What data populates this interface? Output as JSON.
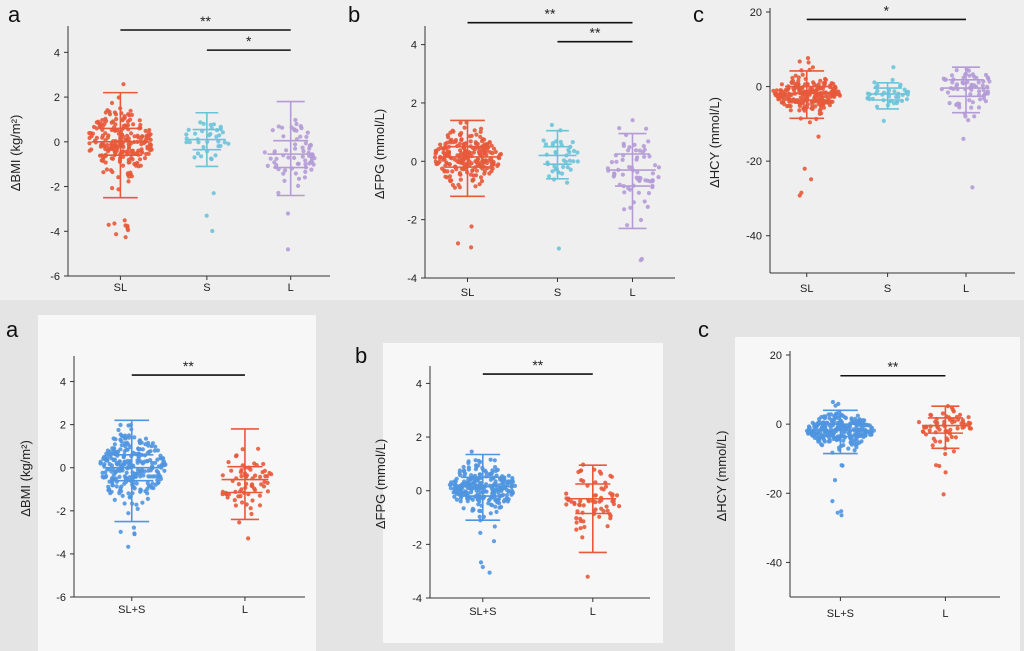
{
  "colors": {
    "orange": "#e8593a",
    "cyan": "#6cc3d9",
    "lavender": "#b49bd6",
    "blue": "#4f95e0"
  },
  "figure": {
    "top_row": [
      {
        "letter": "a",
        "ylabel": "ΔBMI (kg/m²)",
        "ylim": [
          -6,
          5
        ],
        "yticks": [
          -6,
          -4,
          -2,
          0,
          2,
          4
        ],
        "tick_labels": [
          "-6",
          "-4",
          "-2",
          "0",
          "2",
          "4"
        ],
        "groups": [
          {
            "name": "SL",
            "color": "orange",
            "mean": 0.0,
            "sd": 0.6,
            "min": -2.5,
            "max": 2.2,
            "n": 230,
            "spread": 1.0
          },
          {
            "name": "S",
            "color": "cyan",
            "mean": 0.1,
            "sd": 0.45,
            "min": -1.1,
            "max": 1.3,
            "n": 40,
            "spread": 0.55
          },
          {
            "name": "L",
            "color": "lavender",
            "mean": -0.55,
            "sd": 0.6,
            "min": -2.4,
            "max": 1.8,
            "n": 70,
            "spread": 0.75
          }
        ],
        "brackets": [
          {
            "from": 0,
            "to": 2,
            "label": "**",
            "y": 5.0
          },
          {
            "from": 1,
            "to": 2,
            "label": "*",
            "y": 4.1
          }
        ]
      },
      {
        "letter": "b",
        "ylabel": "ΔFPG (mmol/L)",
        "ylim": [
          -4,
          4.5
        ],
        "yticks": [
          -4,
          -2,
          0,
          2,
          4
        ],
        "tick_labels": [
          "-4",
          "-2",
          "0",
          "2",
          "4"
        ],
        "groups": [
          {
            "name": "SL",
            "color": "orange",
            "mean": 0.15,
            "sd": 0.35,
            "min": -1.2,
            "max": 1.4,
            "n": 230,
            "spread": 1.0
          },
          {
            "name": "S",
            "color": "cyan",
            "mean": 0.2,
            "sd": 0.3,
            "min": -0.6,
            "max": 1.05,
            "n": 40,
            "spread": 0.55
          },
          {
            "name": "L",
            "color": "lavender",
            "mean": -0.3,
            "sd": 0.55,
            "min": -2.3,
            "max": 0.95,
            "n": 70,
            "spread": 0.75
          }
        ],
        "brackets": [
          {
            "from": 0,
            "to": 2,
            "label": "**",
            "y": 4.75
          },
          {
            "from": 1,
            "to": 2,
            "label": "**",
            "y": 4.1
          }
        ]
      },
      {
        "letter": "c",
        "ylabel": "ΔHCY (mmol/L)",
        "ylim": [
          -50,
          20
        ],
        "yticks": [
          -40,
          -20,
          0,
          20
        ],
        "tick_labels": [
          "-40",
          "-20",
          "0",
          "20"
        ],
        "groups": [
          {
            "name": "SL",
            "color": "orange",
            "mean": -1.8,
            "sd": 1.8,
            "min": -8.5,
            "max": 4.2,
            "n": 230,
            "spread": 1.0
          },
          {
            "name": "S",
            "color": "cyan",
            "mean": -2.0,
            "sd": 1.6,
            "min": -6.0,
            "max": 1.0,
            "n": 40,
            "spread": 0.55
          },
          {
            "name": "L",
            "color": "lavender",
            "mean": -0.4,
            "sd": 2.2,
            "min": -7.0,
            "max": 5.2,
            "n": 70,
            "spread": 0.75
          }
        ],
        "brackets": [
          {
            "from": 0,
            "to": 2,
            "label": "*",
            "y": 18.0
          }
        ]
      }
    ],
    "bottom_row": [
      {
        "letter": "a",
        "ylabel": "ΔBMI (kg/m²)",
        "ylim": [
          -6,
          5
        ],
        "yticks": [
          -6,
          -4,
          -2,
          0,
          2,
          4
        ],
        "tick_labels": [
          "-6",
          "-4",
          "-2",
          "0",
          "2",
          "4"
        ],
        "groups": [
          {
            "name": "SL+S",
            "color": "blue",
            "mean": 0.0,
            "sd": 0.6,
            "min": -2.5,
            "max": 2.2,
            "n": 270,
            "spread": 1.0
          },
          {
            "name": "L",
            "color": "orange",
            "mean": -0.55,
            "sd": 0.6,
            "min": -2.4,
            "max": 1.8,
            "n": 70,
            "spread": 0.75
          }
        ],
        "brackets": [
          {
            "from": 0,
            "to": 1,
            "label": "**",
            "y": 4.3
          }
        ]
      },
      {
        "letter": "b",
        "ylabel": "ΔFPG (mmol/L)",
        "ylim": [
          -4,
          4.5
        ],
        "yticks": [
          -4,
          -2,
          0,
          2,
          4
        ],
        "tick_labels": [
          "-4",
          "-2",
          "0",
          "2",
          "4"
        ],
        "groups": [
          {
            "name": "SL+S",
            "color": "blue",
            "mean": 0.15,
            "sd": 0.35,
            "min": -1.1,
            "max": 1.35,
            "n": 270,
            "spread": 1.0
          },
          {
            "name": "L",
            "color": "orange",
            "mean": -0.3,
            "sd": 0.55,
            "min": -2.3,
            "max": 0.95,
            "n": 70,
            "spread": 0.75
          }
        ],
        "brackets": [
          {
            "from": 0,
            "to": 1,
            "label": "**",
            "y": 4.35
          }
        ]
      },
      {
        "letter": "c",
        "ylabel": "ΔHCY (mmol/L)",
        "ylim": [
          -50,
          20
        ],
        "yticks": [
          -40,
          -20,
          0,
          20
        ],
        "tick_labels": [
          "-40",
          "-20",
          "0",
          "20"
        ],
        "groups": [
          {
            "name": "SL+S",
            "color": "blue",
            "mean": -1.8,
            "sd": 1.8,
            "min": -8.5,
            "max": 4.0,
            "n": 270,
            "spread": 1.0
          },
          {
            "name": "L",
            "color": "orange",
            "mean": -0.4,
            "sd": 2.2,
            "min": -7.0,
            "max": 5.2,
            "n": 70,
            "spread": 0.75
          }
        ],
        "brackets": [
          {
            "from": 0,
            "to": 1,
            "label": "**",
            "y": 14.0
          }
        ]
      }
    ]
  },
  "chart_data": [
    {
      "type": "scatter",
      "panel": "a (top)",
      "ylabel": "ΔBMI (kg/m²)",
      "ylim": [
        -6,
        5
      ],
      "categories": [
        "SL",
        "S",
        "L"
      ],
      "series": [
        {
          "mean": [
            0.0,
            0.1,
            -0.55
          ],
          "sd_lower": [
            -2.5,
            -1.1,
            -2.4
          ],
          "sd_upper": [
            2.2,
            1.3,
            1.8
          ]
        }
      ],
      "annotations": [
        {
          "between": [
            "SL",
            "L"
          ],
          "label": "**"
        },
        {
          "between": [
            "S",
            "L"
          ],
          "label": "*"
        }
      ]
    },
    {
      "type": "scatter",
      "panel": "b (top)",
      "ylabel": "ΔFPG (mmol/L)",
      "ylim": [
        -4,
        4.5
      ],
      "categories": [
        "SL",
        "S",
        "L"
      ],
      "series": [
        {
          "mean": [
            0.15,
            0.2,
            -0.3
          ],
          "sd_lower": [
            -1.2,
            -0.6,
            -2.3
          ],
          "sd_upper": [
            1.4,
            1.05,
            0.95
          ]
        }
      ],
      "annotations": [
        {
          "between": [
            "SL",
            "L"
          ],
          "label": "**"
        },
        {
          "between": [
            "S",
            "L"
          ],
          "label": "**"
        }
      ]
    },
    {
      "type": "scatter",
      "panel": "c (top)",
      "ylabel": "ΔHCY (mmol/L)",
      "ylim": [
        -50,
        20
      ],
      "categories": [
        "SL",
        "S",
        "L"
      ],
      "series": [
        {
          "mean": [
            -1.8,
            -2.0,
            -0.4
          ],
          "sd_lower": [
            -8.5,
            -6.0,
            -7.0
          ],
          "sd_upper": [
            4.2,
            1.0,
            5.2
          ]
        }
      ],
      "annotations": [
        {
          "between": [
            "SL",
            "L"
          ],
          "label": "*"
        }
      ]
    },
    {
      "type": "scatter",
      "panel": "a (bottom)",
      "ylabel": "ΔBMI (kg/m²)",
      "ylim": [
        -6,
        5
      ],
      "categories": [
        "SL+S",
        "L"
      ],
      "series": [
        {
          "mean": [
            0.0,
            -0.55
          ],
          "sd_lower": [
            -2.5,
            -2.4
          ],
          "sd_upper": [
            2.2,
            1.8
          ]
        }
      ],
      "annotations": [
        {
          "between": [
            "SL+S",
            "L"
          ],
          "label": "**"
        }
      ]
    },
    {
      "type": "scatter",
      "panel": "b (bottom)",
      "ylabel": "ΔFPG (mmol/L)",
      "ylim": [
        -4,
        4.5
      ],
      "categories": [
        "SL+S",
        "L"
      ],
      "series": [
        {
          "mean": [
            0.15,
            -0.3
          ],
          "sd_lower": [
            -1.1,
            -2.3
          ],
          "sd_upper": [
            1.35,
            0.95
          ]
        }
      ],
      "annotations": [
        {
          "between": [
            "SL+S",
            "L"
          ],
          "label": "**"
        }
      ]
    },
    {
      "type": "scatter",
      "panel": "c (bottom)",
      "ylabel": "ΔHCY (mmol/L)",
      "ylim": [
        -50,
        20
      ],
      "categories": [
        "SL+S",
        "L"
      ],
      "series": [
        {
          "mean": [
            -1.8,
            -0.4
          ],
          "sd_lower": [
            -8.5,
            -7.0
          ],
          "sd_upper": [
            4.0,
            5.2
          ]
        }
      ],
      "annotations": [
        {
          "between": [
            "SL+S",
            "L"
          ],
          "label": "**"
        }
      ]
    }
  ]
}
